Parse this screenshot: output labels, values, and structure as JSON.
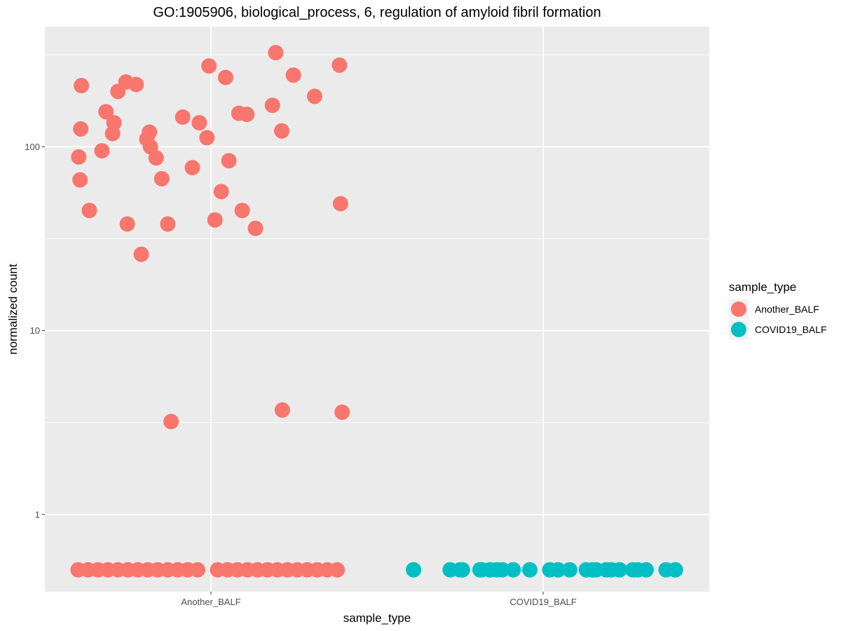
{
  "chart_data": {
    "type": "scatter",
    "title": "GO:1905906, biological_process, 6, regulation of amyloid fibril formation",
    "xlabel": "sample_type",
    "ylabel": "normalized count",
    "y_scale": "log10",
    "ylim": [
      0.38,
      450
    ],
    "categories": [
      "Another_BALF",
      "COVID19_BALF"
    ],
    "y_ticks": [
      {
        "value": 1,
        "label": "1"
      },
      {
        "value": 10,
        "label": "10"
      },
      {
        "value": 100,
        "label": "100"
      }
    ],
    "grid": true,
    "legend": {
      "title": "sample_type",
      "position": "right",
      "entries": [
        {
          "label": "Another_BALF",
          "color": "#F8766D"
        },
        {
          "label": "COVID19_BALF",
          "color": "#00BFC4"
        }
      ]
    },
    "series": [
      {
        "category": "Another_BALF",
        "color": "#F8766D",
        "jitter": [
          -0.4,
          -0.37,
          -0.34,
          -0.31,
          -0.28,
          -0.25,
          -0.22,
          -0.19,
          -0.16,
          -0.13,
          -0.1,
          -0.07,
          -0.04,
          0.02,
          0.05,
          0.08,
          0.11,
          0.14,
          0.17,
          0.2,
          0.23,
          0.26,
          0.29,
          0.32,
          0.35,
          0.38,
          -0.398,
          -0.394,
          -0.392,
          -0.39,
          -0.366,
          -0.328,
          -0.316,
          -0.296,
          -0.292,
          -0.28,
          -0.256,
          -0.252,
          -0.225,
          -0.21,
          -0.193,
          -0.185,
          -0.182,
          -0.165,
          -0.148,
          -0.13,
          -0.12,
          -0.085,
          -0.056,
          -0.035,
          -0.012,
          -0.006,
          0.012,
          0.031,
          0.044,
          0.054,
          0.084,
          0.094,
          0.108,
          0.134,
          0.185,
          0.195,
          0.213,
          0.215,
          0.248,
          0.312,
          0.387,
          0.39,
          0.395
        ],
        "values": [
          0.5,
          0.5,
          0.5,
          0.5,
          0.5,
          0.5,
          0.5,
          0.5,
          0.5,
          0.5,
          0.5,
          0.5,
          0.5,
          0.5,
          0.5,
          0.5,
          0.5,
          0.5,
          0.5,
          0.5,
          0.5,
          0.5,
          0.5,
          0.5,
          0.5,
          0.5,
          88,
          66,
          125,
          215,
          45,
          95,
          155,
          118,
          135,
          200,
          225,
          38,
          218,
          26,
          110,
          120,
          100,
          87,
          67,
          38,
          3.2,
          145,
          77,
          135,
          112,
          275,
          40,
          57,
          238,
          84,
          152,
          45,
          150,
          36,
          168,
          325,
          122,
          3.7,
          245,
          188,
          278,
          49,
          3.6
        ]
      },
      {
        "category": "COVID19_BALF",
        "color": "#00BFC4",
        "jitter": [
          -0.39,
          -0.28,
          -0.25,
          -0.19,
          -0.16,
          -0.14,
          -0.09,
          -0.04,
          0.02,
          0.08,
          0.13,
          0.16,
          0.19,
          0.23,
          0.27,
          0.31,
          0.37,
          -0.243,
          -0.185,
          -0.123,
          0.045,
          0.148,
          0.205,
          0.285,
          0.398
        ],
        "values": [
          0.5,
          0.5,
          0.5,
          0.5,
          0.5,
          0.5,
          0.5,
          0.5,
          0.5,
          0.5,
          0.5,
          0.5,
          0.5,
          0.5,
          0.5,
          0.5,
          0.5,
          0.5,
          0.5,
          0.5,
          0.5,
          0.5,
          0.5,
          0.5,
          0.5
        ]
      }
    ]
  }
}
